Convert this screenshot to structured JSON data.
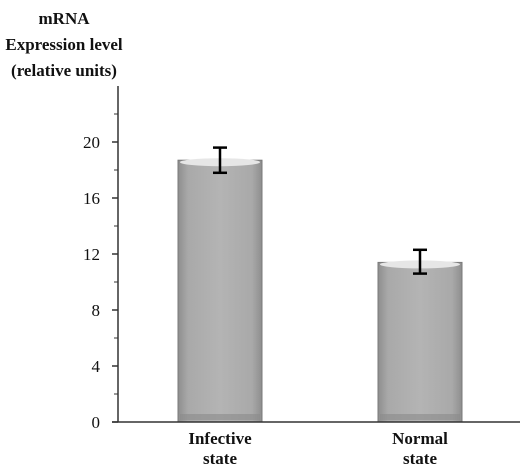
{
  "chart_data": {
    "type": "bar",
    "categories": [
      [
        "Infective",
        "state"
      ],
      [
        "Normal",
        "state"
      ]
    ],
    "values": [
      18.7,
      11.4
    ],
    "errors": [
      [
        17.8,
        19.6
      ],
      [
        10.6,
        12.3
      ]
    ],
    "ylabel": [
      "mRNA",
      "Expression level",
      "(relative units)"
    ],
    "xlabel": "",
    "ylim": [
      0,
      24
    ],
    "yticks": [
      "0",
      "4",
      "8",
      "12",
      "16",
      "20"
    ],
    "grid": false,
    "colors": {
      "bar_fill": "#a6a6a6",
      "bar_top": "#e6e6e6",
      "bar_edge": "#7a7a7a",
      "axis": "#333333",
      "error": "#000000"
    }
  }
}
